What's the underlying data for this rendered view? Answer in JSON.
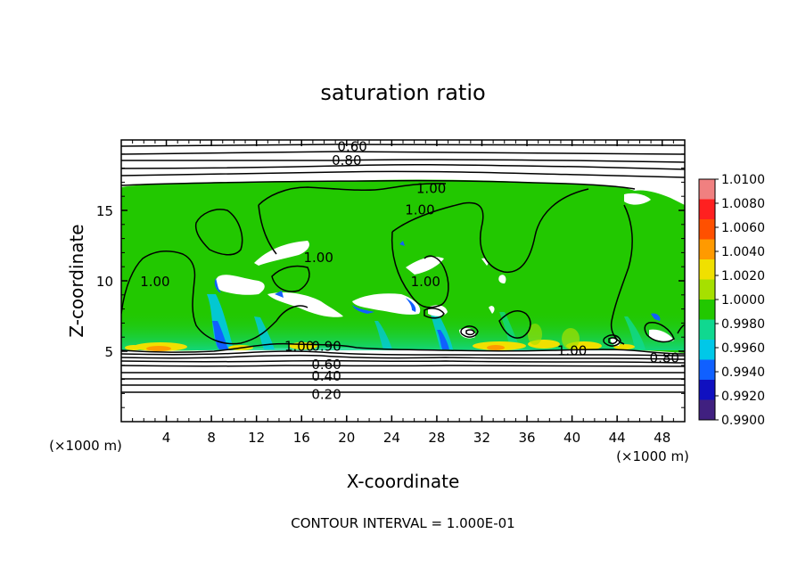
{
  "chart_data": {
    "type": "heatmap",
    "title": "saturation ratio",
    "xlabel": "X-coordinate",
    "ylabel": "Z-coordinate",
    "x_units_note_left": "(×1000 m)",
    "x_units_note_right": "(×1000 m)",
    "footer": "CONTOUR INTERVAL = 1.000E-01",
    "xlim": [
      0,
      50
    ],
    "ylim": [
      0,
      20
    ],
    "xticks": [
      "4",
      "8",
      "12",
      "16",
      "20",
      "24",
      "28",
      "32",
      "36",
      "40",
      "44",
      "48"
    ],
    "xtick_values": [
      4,
      8,
      12,
      16,
      20,
      24,
      28,
      32,
      36,
      40,
      44,
      48
    ],
    "yticks": [
      "5",
      "10",
      "15"
    ],
    "ytick_values": [
      5,
      10,
      15
    ],
    "colorbar": {
      "labels": [
        "1.0100",
        "1.0080",
        "1.0060",
        "1.0040",
        "1.0020",
        "1.0000",
        "0.9980",
        "0.9960",
        "0.9940",
        "0.9920",
        "0.9900"
      ],
      "values": [
        1.01,
        1.008,
        1.006,
        1.004,
        1.002,
        1.0,
        0.998,
        0.996,
        0.994,
        0.992,
        0.99
      ],
      "colors": [
        "#f08080",
        "#ff2020",
        "#ff5000",
        "#ff9a00",
        "#f0e000",
        "#a6e000",
        "#22c800",
        "#10d890",
        "#00c8e8",
        "#1060ff",
        "#1010c0",
        "#402080"
      ]
    },
    "contour_labels": [
      {
        "text": "0.60",
        "x": 20.5,
        "z": 19.6
      },
      {
        "text": "0.80",
        "x": 20.0,
        "z": 18.6
      },
      {
        "text": "1.00",
        "x": 27.5,
        "z": 16.6
      },
      {
        "text": "1.00",
        "x": 26.5,
        "z": 15.1
      },
      {
        "text": "1.00",
        "x": 17.5,
        "z": 11.7
      },
      {
        "text": "1.00",
        "x": 3.0,
        "z": 10.0
      },
      {
        "text": "1.00",
        "x": 27.0,
        "z": 10.0
      },
      {
        "text": "1.00",
        "x": 15.8,
        "z": 5.4
      },
      {
        "text": "0.90",
        "x": 18.2,
        "z": 5.4
      },
      {
        "text": "0.60",
        "x": 18.2,
        "z": 4.1
      },
      {
        "text": "0.40",
        "x": 18.2,
        "z": 3.3
      },
      {
        "text": "0.20",
        "x": 18.2,
        "z": 2.0
      },
      {
        "text": "1.00",
        "x": 40.0,
        "z": 5.1
      },
      {
        "text": "0.80",
        "x": 48.2,
        "z": 4.6
      }
    ],
    "cloud_top_z": 16.7,
    "cloud_base_z": 5.2,
    "interior_value": 1.0
  }
}
